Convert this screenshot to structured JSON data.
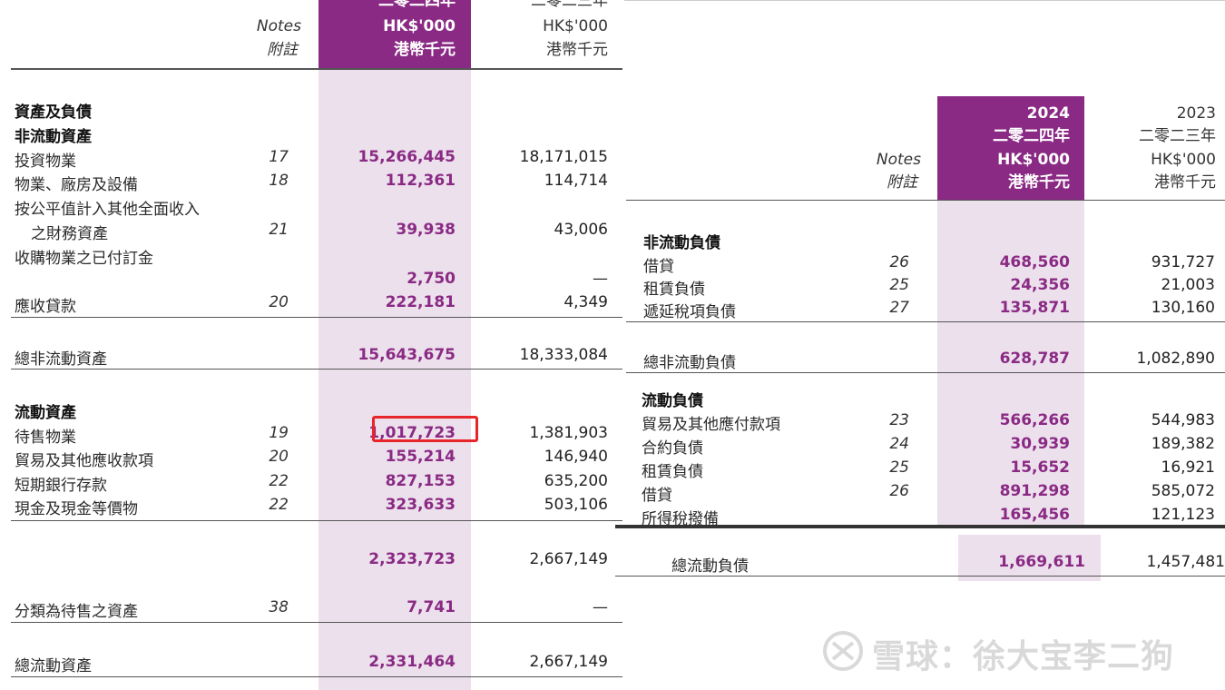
{
  "left": {
    "header": {
      "notes_en": "Notes",
      "notes_zh": "附註",
      "cur_year_zh": "二零二四年",
      "cur_unit_en": "HK$'000",
      "cur_unit_zh": "港幣千元",
      "prev_year_zh": "二零二三年",
      "prev_unit_en": "HK$'000",
      "prev_unit_zh": "港幣千元"
    },
    "section_assets_liabilities": "資產及負債",
    "section_non_current": "非流動資產",
    "rows_non_current": [
      {
        "label": "投資物業",
        "note": "17",
        "cur": "15,266,445",
        "prev": "18,171,015"
      },
      {
        "label": "物業、廠房及設備",
        "note": "18",
        "cur": "112,361",
        "prev": "114,714"
      },
      {
        "label": "按公平值計入其他全面收入",
        "label2": "之財務資產",
        "note": "21",
        "cur": "39,938",
        "prev": "43,006"
      },
      {
        "label": "收購物業之已付訂金",
        "note": "",
        "cur": "2,750",
        "prev": "—"
      },
      {
        "label": "應收貸款",
        "note": "20",
        "cur": "222,181",
        "prev": "4,349"
      }
    ],
    "total_non_current": {
      "label": "總非流動資產",
      "cur": "15,643,675",
      "prev": "18,333,084"
    },
    "section_current": "流動資產",
    "rows_current": [
      {
        "label": "待售物業",
        "note": "19",
        "cur": "1,017,723",
        "prev": "1,381,903"
      },
      {
        "label": "貿易及其他應收款項",
        "note": "20",
        "cur": "155,214",
        "prev": "146,940"
      },
      {
        "label": "短期銀行存款",
        "note": "22",
        "cur": "827,153",
        "prev": "635,200"
      },
      {
        "label": "現金及現金等價物",
        "note": "22",
        "cur": "323,633",
        "prev": "503,106"
      }
    ],
    "subtotal_current": {
      "cur": "2,323,723",
      "prev": "2,667,149"
    },
    "held_for_sale": {
      "label": "分類為待售之資產",
      "note": "38",
      "cur": "7,741",
      "prev": "—"
    },
    "total_current": {
      "label": "總流動資產",
      "cur": "2,331,464",
      "prev": "2,667,149"
    }
  },
  "right": {
    "header": {
      "cur_year": "2024",
      "cur_year_zh": "二零二四年",
      "cur_unit_en": "HK$'000",
      "cur_unit_zh": "港幣千元",
      "prev_year": "2023",
      "prev_year_zh": "二零二三年",
      "prev_unit_en": "HK$'000",
      "prev_unit_zh": "港幣千元",
      "notes_en": "Notes",
      "notes_zh": "附註"
    },
    "section_non_current_liab": "非流動負債",
    "rows_non_current_liab": [
      {
        "label": "借貸",
        "note": "26",
        "cur": "468,560",
        "prev": "931,727"
      },
      {
        "label": "租賃負債",
        "note": "25",
        "cur": "24,356",
        "prev": "21,003"
      },
      {
        "label": "遞延稅項負債",
        "note": "27",
        "cur": "135,871",
        "prev": "130,160"
      }
    ],
    "total_non_current_liab": {
      "label": "總非流動負債",
      "cur": "628,787",
      "prev": "1,082,890"
    },
    "section_current_liab": "流動負債",
    "rows_current_liab": [
      {
        "label": "貿易及其他應付款項",
        "note": "23",
        "cur": "566,266",
        "prev": "544,983"
      },
      {
        "label": "合約負債",
        "note": "24",
        "cur": "30,939",
        "prev": "189,382"
      },
      {
        "label": "租賃負債",
        "note": "25",
        "cur": "15,652",
        "prev": "16,921"
      },
      {
        "label": "借貸",
        "note": "26",
        "cur": "891,298",
        "prev": "585,072"
      },
      {
        "label": "所得稅撥備",
        "note": "",
        "cur": "165,456",
        "prev": "121,123"
      }
    ],
    "total_current_liab": {
      "label": "總流動負債",
      "cur": "1,669,611",
      "prev": "1,457,481"
    }
  },
  "watermark": "雪球：徐大宝李二狗",
  "colors": {
    "accent": "#8a2a84",
    "band": "#ece0ec",
    "highlight_box": "#e8262a"
  }
}
